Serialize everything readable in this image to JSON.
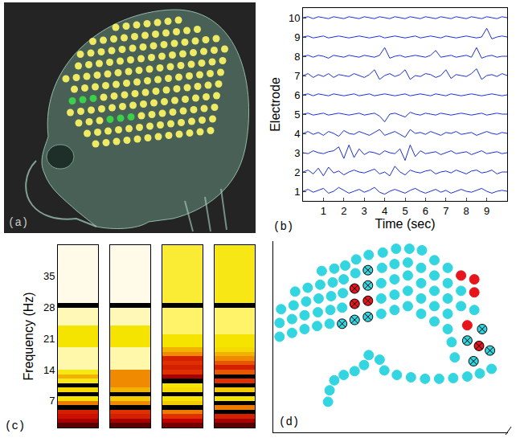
{
  "chart_data": [
    {
      "label": "(a)",
      "type": "image"
    },
    {
      "label": "(b)",
      "type": "line",
      "x_label": "Time (sec)",
      "y_label": "Electrode",
      "grid": false,
      "xlim": [
        0,
        10
      ],
      "xticks": [
        1,
        2,
        3,
        4,
        5,
        6,
        7,
        8,
        9
      ],
      "ylim": [
        0.5,
        10.5
      ],
      "yticks": [
        1,
        2,
        3,
        4,
        5,
        6,
        7,
        8,
        9,
        10
      ],
      "x": [
        0,
        0.25,
        0.5,
        0.75,
        1,
        1.25,
        1.5,
        1.75,
        2,
        2.25,
        2.5,
        2.75,
        3,
        3.25,
        3.5,
        3.75,
        4,
        4.25,
        4.5,
        4.75,
        5,
        5.25,
        5.5,
        5.75,
        6,
        6.25,
        6.5,
        6.75,
        7,
        7.25,
        7.5,
        7.75,
        8,
        8.25,
        8.5,
        8.75,
        9,
        9.25,
        9.5,
        9.75,
        10
      ],
      "series": [
        {
          "color": "#1c2fd6",
          "values": [
            1.0,
            1.1,
            0.95,
            1.05,
            1.15,
            0.9,
            1.0,
            1.2,
            1.05,
            0.9,
            1.0,
            1.1,
            0.95,
            1.05,
            1.2,
            0.95,
            0.85,
            1.0,
            1.1,
            1.0,
            0.9,
            1.05,
            1.15,
            1.0,
            0.9,
            1.0,
            1.1,
            0.95,
            1.05,
            0.9,
            1.0,
            1.1,
            1.0,
            0.95,
            1.05,
            1.15,
            1.0,
            0.9,
            1.0,
            1.05,
            1.0
          ]
        },
        {
          "color": "#1c2fd6",
          "values": [
            2.0,
            2.1,
            1.9,
            2.2,
            1.8,
            2.25,
            1.95,
            2.05,
            1.85,
            2.0,
            2.1,
            2.0,
            1.95,
            2.05,
            2.15,
            1.9,
            2.0,
            1.8,
            2.3,
            2.0,
            1.85,
            2.1,
            2.0,
            1.95,
            2.05,
            2.1,
            1.9,
            2.0,
            2.05,
            1.95,
            2.1,
            2.0,
            1.9,
            2.05,
            2.1,
            1.95,
            2.0,
            2.1,
            1.9,
            2.0,
            2.0
          ]
        },
        {
          "color": "#1c2fd6",
          "values": [
            3.0,
            2.95,
            3.1,
            3.0,
            2.95,
            3.05,
            3.1,
            3.3,
            2.7,
            3.4,
            2.75,
            3.2,
            2.9,
            3.05,
            3.0,
            2.9,
            3.1,
            3.0,
            2.95,
            3.2,
            2.6,
            3.4,
            2.8,
            3.1,
            2.95,
            3.0,
            3.05,
            2.9,
            3.0,
            3.1,
            2.95,
            3.0,
            3.05,
            2.9,
            3.0,
            3.1,
            2.95,
            3.0,
            3.05,
            2.95,
            3.0
          ]
        },
        {
          "color": "#1c2fd6",
          "values": [
            4.0,
            4.1,
            3.95,
            4.05,
            3.9,
            4.1,
            4.0,
            3.85,
            4.15,
            4.0,
            3.95,
            4.1,
            4.0,
            3.9,
            4.05,
            4.2,
            3.9,
            4.0,
            4.1,
            3.95,
            3.8,
            4.2,
            4.0,
            4.05,
            3.95,
            4.1,
            4.0,
            3.9,
            4.05,
            4.0,
            4.1,
            3.95,
            4.0,
            4.05,
            3.9,
            4.0,
            4.1,
            4.0,
            3.95,
            4.05,
            4.0
          ]
        },
        {
          "color": "#1c2fd6",
          "values": [
            5.0,
            5.05,
            4.95,
            5.0,
            5.05,
            4.95,
            5.0,
            5.05,
            5.0,
            4.95,
            5.0,
            5.05,
            4.95,
            5.0,
            5.05,
            4.9,
            4.6,
            5.0,
            5.05,
            4.95,
            4.85,
            5.1,
            5.0,
            4.95,
            5.05,
            5.0,
            4.95,
            5.05,
            5.0,
            4.95,
            5.0,
            5.05,
            5.0,
            4.95,
            5.0,
            5.05,
            4.95,
            5.0,
            5.05,
            5.0,
            5.0
          ]
        },
        {
          "color": "#1c2fd6",
          "values": [
            6.0,
            6.05,
            5.95,
            6.05,
            6.0,
            5.95,
            6.05,
            6.0,
            5.95,
            6.0,
            6.05,
            5.95,
            6.0,
            6.05,
            5.95,
            6.0,
            6.05,
            6.0,
            5.95,
            6.0,
            6.05,
            5.95,
            6.0,
            6.05,
            6.0,
            5.95,
            6.05,
            6.0,
            5.95,
            6.05,
            6.0,
            5.95,
            6.0,
            6.05,
            6.0,
            5.95,
            6.0,
            6.05,
            6.0,
            5.95,
            6.0
          ]
        },
        {
          "color": "#1c2fd6",
          "values": [
            7.0,
            7.1,
            6.9,
            7.05,
            6.95,
            7.1,
            6.9,
            7.05,
            7.0,
            6.95,
            7.1,
            7.0,
            6.9,
            7.05,
            7.3,
            6.8,
            7.0,
            7.1,
            6.95,
            7.05,
            7.3,
            6.8,
            7.0,
            6.95,
            7.1,
            7.05,
            6.9,
            7.0,
            7.3,
            6.85,
            7.05,
            7.0,
            6.95,
            7.1,
            7.35,
            6.8,
            7.0,
            7.05,
            6.95,
            7.1,
            7.0
          ]
        },
        {
          "color": "#1c2fd6",
          "values": [
            8.0,
            8.05,
            7.95,
            8.05,
            8.0,
            7.9,
            8.05,
            8.0,
            7.95,
            8.05,
            8.0,
            7.95,
            8.05,
            8.0,
            7.95,
            8.05,
            8.45,
            7.9,
            8.0,
            8.05,
            7.95,
            8.0,
            8.05,
            8.0,
            7.95,
            8.05,
            8.3,
            7.95,
            8.0,
            8.05,
            7.95,
            8.0,
            8.05,
            7.95,
            8.45,
            7.9,
            8.0,
            8.05,
            7.95,
            8.0,
            8.0
          ]
        },
        {
          "color": "#1c2fd6",
          "values": [
            9.0,
            9.05,
            8.95,
            9.0,
            9.05,
            8.95,
            9.0,
            9.05,
            9.0,
            8.95,
            9.0,
            9.05,
            9.0,
            8.95,
            9.0,
            9.05,
            8.95,
            9.0,
            9.05,
            9.0,
            8.95,
            9.0,
            9.05,
            8.95,
            9.0,
            9.05,
            9.0,
            8.95,
            9.05,
            9.0,
            8.95,
            9.0,
            9.05,
            9.0,
            8.95,
            9.0,
            9.45,
            8.9,
            9.0,
            9.05,
            9.0
          ]
        },
        {
          "color": "#1c2fd6",
          "values": [
            10.0,
            10.05,
            9.95,
            10.05,
            10.0,
            9.95,
            10.05,
            10.0,
            9.95,
            10.05,
            10.0,
            9.95,
            10.05,
            10.0,
            9.95,
            10.05,
            10.0,
            9.95,
            10.05,
            10.0,
            9.95,
            10.05,
            10.0,
            9.95,
            10.05,
            10.0,
            9.95,
            10.05,
            10.0,
            9.95,
            10.05,
            10.0,
            9.95,
            10.05,
            10.0,
            9.95,
            10.05,
            10.0,
            9.95,
            10.05,
            10.0
          ]
        }
      ]
    },
    {
      "label": "(c)",
      "type": "heatmap",
      "y_label": "Frequency (Hz)",
      "tick_labels": "y",
      "ylim": [
        1,
        42
      ],
      "yticks": [
        7,
        14,
        21,
        28,
        35
      ],
      "y": [
        1.5,
        2.5,
        3.5,
        4.5,
        5.5,
        6.5,
        7.5,
        8.5,
        9.5,
        10.5,
        11.5,
        12.5,
        13.5,
        14.5,
        15.5,
        16.5,
        17.5,
        18.5,
        19.5,
        20.5,
        21.5,
        22.5,
        23.5,
        24.5,
        25.5,
        26.5,
        27.5,
        28.5,
        29.5,
        30.5,
        31.5,
        32.5,
        33.5,
        34.5,
        35.5,
        36.5,
        37.5,
        38.5,
        39.5,
        40.5,
        41.5
      ],
      "columns": [
        [
          0.15,
          0.3,
          0.4,
          0.45,
          0.0,
          0.6,
          0.8,
          0.0,
          0.78,
          0.0,
          0.82,
          0.7,
          0.82,
          0.95,
          0.95,
          0.95,
          0.95,
          0.95,
          0.8,
          0.8,
          0.8,
          0.8,
          0.8,
          0.96,
          0.96,
          0.96,
          0.96,
          0.0,
          1,
          1,
          1,
          1,
          1,
          1,
          1,
          1,
          1,
          1,
          1,
          1,
          1
        ],
        [
          0.15,
          0.3,
          0.45,
          0.5,
          0.0,
          0.62,
          0.75,
          0.0,
          0.7,
          0.62,
          0.62,
          0.62,
          0.62,
          0.95,
          0.95,
          0.95,
          0.95,
          0.95,
          0.8,
          0.8,
          0.8,
          0.8,
          0.8,
          0.96,
          0.96,
          0.96,
          0.96,
          0.0,
          1,
          1,
          1,
          1,
          1,
          1,
          1,
          1,
          1,
          1,
          1,
          1,
          1
        ],
        [
          0.2,
          0.35,
          0.5,
          0.6,
          0.0,
          0.75,
          0.8,
          0.0,
          0.78,
          0.8,
          0.0,
          0.3,
          0.5,
          0.45,
          0.5,
          0.45,
          0.62,
          0.7,
          0.8,
          0.8,
          0.8,
          0.9,
          0.9,
          0.9,
          0.9,
          0.9,
          0.9,
          0.0,
          0.85,
          0.85,
          0.85,
          0.85,
          0.85,
          0.85,
          0.85,
          0.85,
          0.85,
          0.85,
          0.85,
          0.85,
          0.85
        ],
        [
          0.15,
          0.3,
          0.45,
          0.0,
          0.6,
          0.0,
          0.8,
          0.0,
          0.75,
          0.0,
          0.5,
          0.0,
          0.55,
          0.45,
          0.55,
          0.62,
          0.7,
          0.78,
          0.8,
          0.8,
          0.8,
          0.9,
          0.9,
          0.9,
          0.9,
          0.9,
          0.9,
          0.0,
          0.82,
          0.82,
          0.82,
          0.82,
          0.82,
          0.82,
          0.82,
          0.82,
          0.82,
          0.82,
          0.82,
          0.82,
          0.82
        ]
      ]
    },
    {
      "label": "(d)",
      "type": "scatter",
      "tick_labels": false,
      "xlim": [
        0,
        300
      ],
      "ylim": [
        0,
        250
      ],
      "series": [
        {
          "color": "#33d6e0",
          "marker": "circle",
          "x": [
            8,
            8,
            10,
            24,
            24,
            26,
            28,
            40,
            40,
            42,
            44,
            56,
            57,
            58,
            60,
            62,
            72,
            73,
            74,
            76,
            78,
            88,
            89,
            90,
            92,
            105,
            106,
            122,
            138,
            138,
            138,
            139,
            140,
            155,
            155,
            155,
            155,
            157,
            172,
            172,
            172,
            172,
            174,
            189,
            189,
            189,
            189,
            190,
            206,
            206,
            206,
            206,
            206,
            223,
            223,
            223,
            223,
            223,
            240,
            240,
            257,
            228,
            232,
            70,
            72,
            78,
            90,
            104,
            116,
            122,
            136,
            142,
            158,
            176,
            194,
            212,
            230,
            248,
            264,
            279
          ],
          "y": [
            125,
            143,
            161,
            130,
            148,
            166,
            184,
            135,
            153,
            171,
            189,
            139,
            157,
            175,
            193,
            211,
            142,
            160,
            178,
            196,
            214,
            163,
            182,
            200,
            218,
            208,
            226,
            232,
            155,
            175,
            195,
            215,
            235,
            160,
            180,
            200,
            220,
            240,
            165,
            185,
            205,
            222,
            240,
            155,
            175,
            195,
            215,
            238,
            145,
            165,
            185,
            205,
            225,
            135,
            155,
            175,
            195,
            215,
            165,
            185,
            160,
            118,
            98,
            40,
            55,
            68,
            75,
            80,
            88,
            101,
            95,
            81,
            75,
            72,
            70,
            70,
            71,
            73,
            77,
            83
          ]
        },
        {
          "color": "#33d6e0",
          "marker": "circle-x",
          "x": [
            88,
            104,
            121,
            121,
            121,
            267,
            248,
            277,
            256
          ],
          "y": [
            142,
            147,
            151,
            192,
            212,
            135,
            120,
            107,
            93
          ]
        },
        {
          "color": "#e8141c",
          "marker": "circle",
          "x": [
            240,
            257,
            257,
            248
          ],
          "y": [
            205,
            200,
            183,
            140
          ]
        },
        {
          "color": "#e8141c",
          "marker": "circle-x",
          "x": [
            104,
            104,
            121,
            263
          ],
          "y": [
            168,
            188,
            172,
            113
          ]
        }
      ]
    }
  ]
}
